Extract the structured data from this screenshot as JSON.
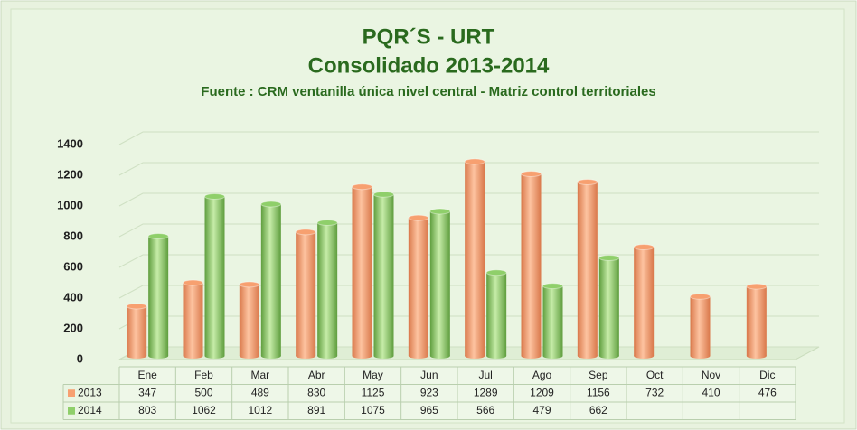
{
  "chart_data": {
    "type": "bar",
    "title": "PQR´S - URT",
    "subtitle": "Consolidado 2013-2014",
    "source": "Fuente : CRM ventanilla única nivel central - Matriz control territoriales",
    "categories": [
      "Ene",
      "Feb",
      "Mar",
      "Abr",
      "May",
      "Jun",
      "Jul",
      "Ago",
      "Sep",
      "Oct",
      "Nov",
      "Dic"
    ],
    "series": [
      {
        "name": "2013",
        "color": "#f7a070",
        "values": [
          347,
          500,
          489,
          830,
          1125,
          923,
          1289,
          1209,
          1156,
          732,
          410,
          476
        ]
      },
      {
        "name": "2014",
        "color": "#8fcf6a",
        "values": [
          803,
          1062,
          1012,
          891,
          1075,
          965,
          566,
          479,
          662,
          null,
          null,
          null
        ]
      }
    ],
    "ylim": [
      0,
      1400
    ],
    "yticks": [
      0,
      200,
      400,
      600,
      800,
      1000,
      1200,
      1400
    ],
    "grid": true
  }
}
